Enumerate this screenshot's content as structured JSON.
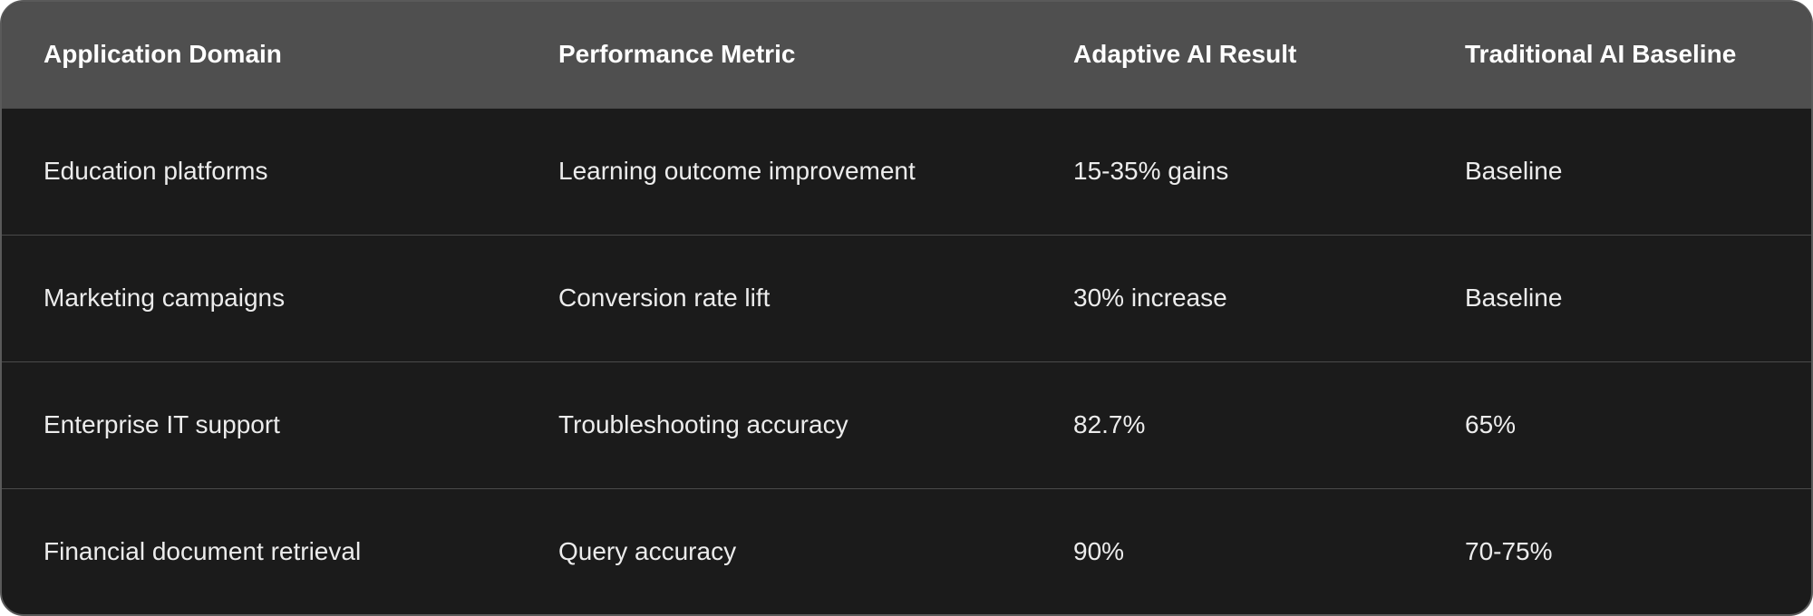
{
  "table": {
    "header": [
      "Application Domain",
      "Performance Metric",
      "Adaptive AI Result",
      "Traditional AI Baseline"
    ],
    "rows": [
      [
        "Education platforms",
        "Learning outcome improvement",
        "15-35% gains",
        "Baseline"
      ],
      [
        "Marketing campaigns",
        "Conversion rate lift",
        "30% increase",
        "Baseline"
      ],
      [
        "Enterprise IT support",
        "Troubleshooting accuracy",
        "82.7%",
        "65%"
      ],
      [
        "Financial document retrieval",
        "Query accuracy",
        "90%",
        "70-75%"
      ]
    ]
  }
}
